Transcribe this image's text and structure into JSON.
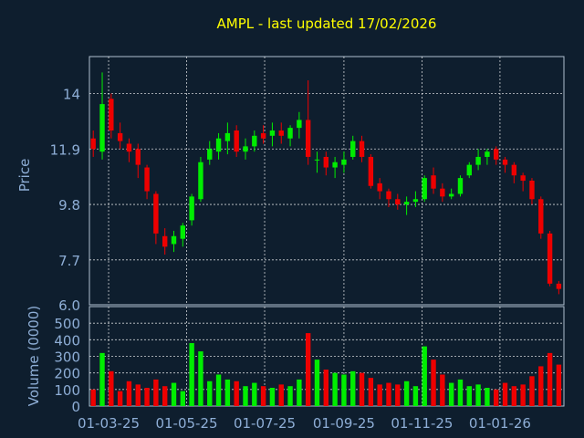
{
  "colors": {
    "background": "#0e1e2e",
    "title": "#ffff00",
    "axis_text": "#8eaed6",
    "grid": "#ffffff",
    "plot_border": "#b0c0d0",
    "up": "#00ee00",
    "down": "#ee0000"
  },
  "chart_data": [
    {
      "type": "line",
      "subtype": "candlestick",
      "title": "AMPL - last updated 17/02/2026",
      "ylabel": "Price",
      "xlabel": "",
      "ylim": [
        6.0,
        15.4
      ],
      "y_ticks": [
        "14",
        "11.9",
        "9.8",
        "7.7",
        "6.0"
      ],
      "x_ticks": [
        "01-03-25",
        "01-05-25",
        "01-07-25",
        "01-09-25",
        "01-11-25",
        "01-01-26"
      ],
      "grid": true,
      "x": [
        "2025-02-17",
        "2025-02-24",
        "2025-03-03",
        "2025-03-10",
        "2025-03-17",
        "2025-03-24",
        "2025-03-31",
        "2025-04-07",
        "2025-04-14",
        "2025-04-21",
        "2025-04-28",
        "2025-05-05",
        "2025-05-12",
        "2025-05-19",
        "2025-05-26",
        "2025-06-02",
        "2025-06-09",
        "2025-06-16",
        "2025-06-23",
        "2025-06-30",
        "2025-07-07",
        "2025-07-14",
        "2025-07-21",
        "2025-07-28",
        "2025-08-04",
        "2025-08-11",
        "2025-08-18",
        "2025-08-25",
        "2025-09-01",
        "2025-09-08",
        "2025-09-15",
        "2025-09-22",
        "2025-09-29",
        "2025-10-06",
        "2025-10-13",
        "2025-10-20",
        "2025-10-27",
        "2025-11-03",
        "2025-11-10",
        "2025-11-17",
        "2025-11-24",
        "2025-12-01",
        "2025-12-08",
        "2025-12-15",
        "2025-12-22",
        "2025-12-29",
        "2026-01-05",
        "2026-01-12",
        "2026-01-19",
        "2026-01-26",
        "2026-02-02",
        "2026-02-09",
        "2026-02-16"
      ],
      "series": [
        {
          "open": [
            12.3,
            11.8,
            13.8,
            12.5,
            12.1,
            11.9,
            11.2,
            10.2,
            8.6,
            8.3,
            8.5,
            9.2,
            10.0,
            11.5,
            11.8,
            12.2,
            12.6,
            11.8,
            12.0,
            12.5,
            12.4,
            12.6,
            12.3,
            12.7,
            13.0,
            11.5,
            11.6,
            11.2,
            11.3,
            11.6,
            12.2,
            11.6,
            10.6,
            10.3,
            10.0,
            9.8,
            9.9,
            10.0,
            10.9,
            10.4,
            10.1,
            10.2,
            10.9,
            11.3,
            11.6,
            11.9,
            11.5,
            11.3,
            10.9,
            10.7,
            10.0,
            8.7,
            6.8
          ],
          "high": [
            12.6,
            14.8,
            14.0,
            12.9,
            12.3,
            12.1,
            11.3,
            10.3,
            8.9,
            8.8,
            9.1,
            10.2,
            11.6,
            12.2,
            12.5,
            12.9,
            12.8,
            12.3,
            12.6,
            12.8,
            12.9,
            12.9,
            12.8,
            13.3,
            14.5,
            11.8,
            11.8,
            11.6,
            11.8,
            12.4,
            12.4,
            11.7,
            10.8,
            10.4,
            10.2,
            10.1,
            10.3,
            10.9,
            11.2,
            10.6,
            10.4,
            10.9,
            11.4,
            11.9,
            11.9,
            12.0,
            11.6,
            11.4,
            11.0,
            10.8,
            10.1,
            8.8,
            6.9
          ],
          "low": [
            11.6,
            11.5,
            12.3,
            11.9,
            11.4,
            10.8,
            10.0,
            8.3,
            7.9,
            8.0,
            8.2,
            9.0,
            9.9,
            11.3,
            11.5,
            11.7,
            11.6,
            11.5,
            11.8,
            12.1,
            12.0,
            12.1,
            12.0,
            12.3,
            11.3,
            11.0,
            10.9,
            10.8,
            11.0,
            11.5,
            11.4,
            10.4,
            10.0,
            9.7,
            9.6,
            9.4,
            9.7,
            9.9,
            10.2,
            9.9,
            10.0,
            10.1,
            10.8,
            11.1,
            11.3,
            11.3,
            11.0,
            10.6,
            10.3,
            9.8,
            8.5,
            6.7,
            6.4
          ],
          "close": [
            11.9,
            13.6,
            12.6,
            12.2,
            11.8,
            11.3,
            10.3,
            8.7,
            8.2,
            8.6,
            9.0,
            10.1,
            11.4,
            11.9,
            12.3,
            12.5,
            11.8,
            12.0,
            12.4,
            12.3,
            12.6,
            12.4,
            12.7,
            13.0,
            11.6,
            11.5,
            11.2,
            11.4,
            11.5,
            12.2,
            11.6,
            10.5,
            10.3,
            10.0,
            9.8,
            9.9,
            10.0,
            10.8,
            10.4,
            10.1,
            10.2,
            10.8,
            11.3,
            11.6,
            11.8,
            11.5,
            11.3,
            10.9,
            10.7,
            10.0,
            8.7,
            6.8,
            6.6
          ],
          "volume": [
            100,
            320,
            210,
            90,
            150,
            130,
            110,
            160,
            120,
            140,
            90,
            380,
            330,
            150,
            190,
            160,
            150,
            120,
            140,
            120,
            110,
            130,
            120,
            160,
            440,
            280,
            220,
            200,
            190,
            210,
            200,
            170,
            130,
            140,
            130,
            150,
            120,
            360,
            280,
            190,
            140,
            160,
            120,
            130,
            110,
            100,
            140,
            120,
            130,
            180,
            240,
            320,
            250
          ]
        }
      ]
    },
    {
      "type": "bar",
      "ylabel": "Volume (0000)",
      "ylim": [
        0,
        600
      ],
      "y_ticks": [
        "500",
        "400",
        "300",
        "200",
        "100",
        "0"
      ],
      "note": "volume values stored in first chart series (per period)"
    }
  ]
}
